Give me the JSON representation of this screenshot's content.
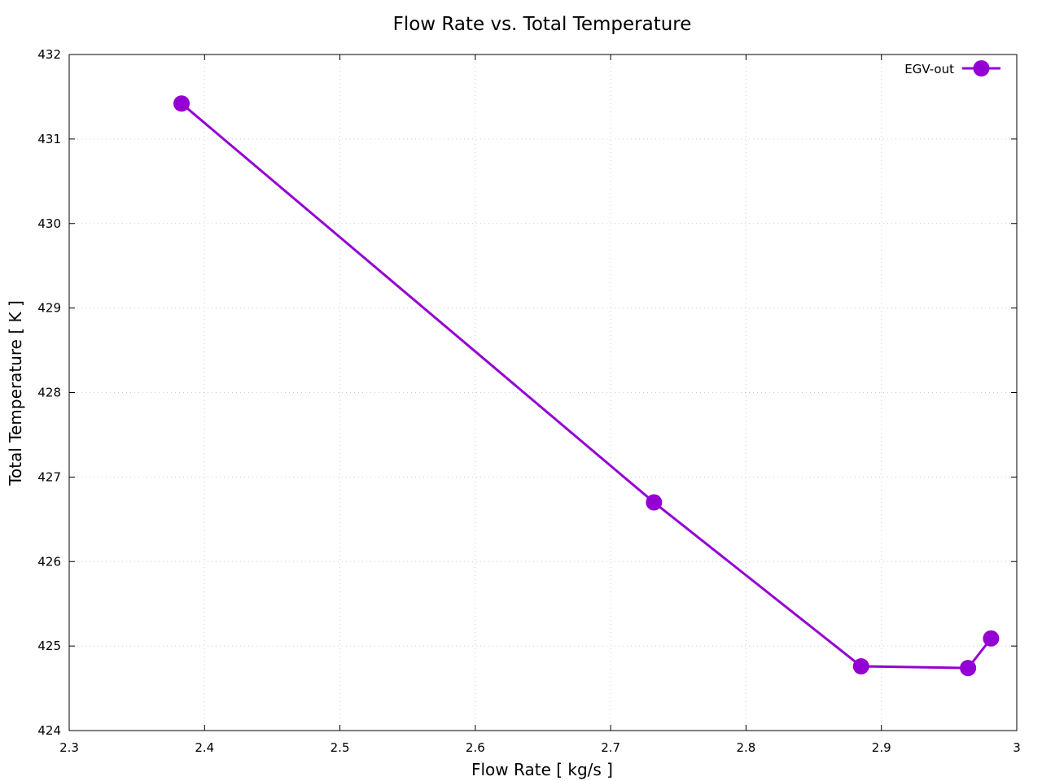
{
  "chart_data": {
    "type": "line",
    "title": "Flow Rate vs. Total Temperature",
    "xlabel": "Flow Rate [ kg/s ]",
    "ylabel": "Total Temperature [ K ]",
    "xlim": [
      2.3,
      3.0
    ],
    "ylim": [
      424,
      432
    ],
    "xticks": [
      2.3,
      2.4,
      2.5,
      2.6,
      2.7,
      2.8,
      2.9,
      3.0
    ],
    "xtick_labels": [
      "2.3",
      "2.4",
      "2.5",
      "2.6",
      "2.7",
      "2.8",
      "2.9",
      "3"
    ],
    "yticks": [
      424,
      425,
      426,
      427,
      428,
      429,
      430,
      431,
      432
    ],
    "ytick_labels": [
      "424",
      "425",
      "426",
      "427",
      "428",
      "429",
      "430",
      "431",
      "432"
    ],
    "grid": true,
    "legend_position": "top-right",
    "series": [
      {
        "name": "EGV-out",
        "color": "#9400D3",
        "marker": "circle",
        "x": [
          2.383,
          2.732,
          2.885,
          2.964,
          2.981
        ],
        "y": [
          431.42,
          426.7,
          424.76,
          424.74,
          425.09
        ]
      }
    ]
  }
}
